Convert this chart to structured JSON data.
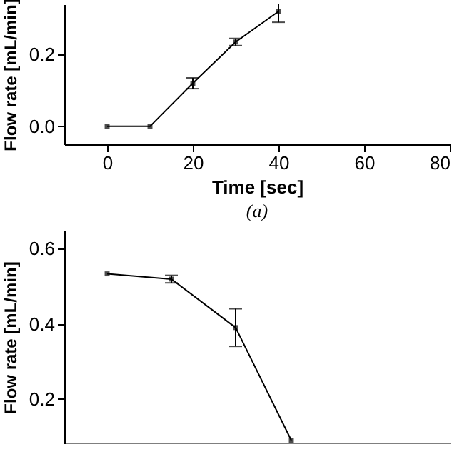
{
  "chart_data": [
    {
      "type": "line",
      "xlabel": "Time [sec]",
      "ylabel": "Flow rate [mL/min]",
      "annotations": [
        "(a)"
      ],
      "x": [
        0,
        10,
        20,
        30,
        40
      ],
      "values": [
        0,
        0,
        0.12,
        0.235,
        0.32
      ],
      "errors": [
        null,
        null,
        0.015,
        0.01,
        0.03
      ],
      "color": "#000000",
      "marker": "square",
      "xlim": [
        -10,
        80
      ],
      "xticks": [
        0,
        20,
        40,
        60,
        80
      ],
      "ylim": [
        -0.05,
        0.34
      ],
      "yticks": [
        {
          "value": 0,
          "label": "0.0"
        },
        0.2
      ],
      "grid": false
    },
    {
      "type": "line",
      "ylabel": "Flow rate [mL/min]",
      "x": [
        0,
        15,
        30,
        43
      ],
      "values": [
        0.533,
        0.519,
        0.39,
        0.09
      ],
      "errors": [
        null,
        0.01,
        0.05,
        null
      ],
      "color": "#000000",
      "marker": "square",
      "xlim": [
        -10,
        80
      ],
      "ylim": [
        0.08,
        0.65
      ],
      "yticks": [
        0.2,
        0.4,
        0.6
      ],
      "tick_labels": "y",
      "grid": false
    }
  ]
}
